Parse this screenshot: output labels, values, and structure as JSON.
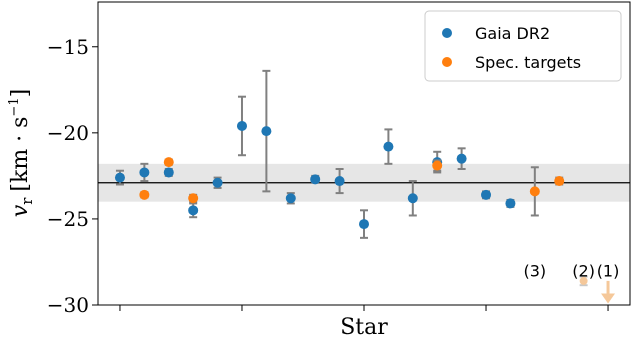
{
  "chart_data": {
    "type": "scatter",
    "title": "",
    "xlabel": "Star",
    "ylabel": "v_r [km · s⁻¹]",
    "ylabel_main": "v",
    "ylabel_sub": "r",
    "ylabel_unit": "[km · s",
    "ylabel_exp": "−1",
    "ylabel_close": "]",
    "ylim": [
      -30,
      -12.4
    ],
    "y_ticks": [
      -30,
      -25,
      -20,
      -15
    ],
    "y_tick_labels": [
      "−30",
      "−25",
      "−20",
      "−15"
    ],
    "x_tick_positions": [
      1,
      6,
      11,
      16,
      21
    ],
    "xlim": [
      0.1,
      21.9
    ],
    "grid": false,
    "legend_position": "top-right",
    "reference_line": -22.9,
    "reference_band": [
      -24.0,
      -21.8
    ],
    "series": [
      {
        "name": "Gaia DR2",
        "color": "#1f77b4",
        "points": [
          {
            "x": 1,
            "y": -22.6,
            "err": 0.4
          },
          {
            "x": 2,
            "y": -22.3,
            "err": 0.5
          },
          {
            "x": 3,
            "y": -22.3,
            "err": 0.2
          },
          {
            "x": 4,
            "y": -24.5,
            "err": 0.4
          },
          {
            "x": 5,
            "y": -22.9,
            "err": 0.3
          },
          {
            "x": 6,
            "y": -19.6,
            "err": 1.7
          },
          {
            "x": 7,
            "y": -19.9,
            "err": 3.5
          },
          {
            "x": 8,
            "y": -23.8,
            "err": 0.3
          },
          {
            "x": 9,
            "y": -22.7,
            "err": 0.2
          },
          {
            "x": 10,
            "y": -22.8,
            "err": 0.7
          },
          {
            "x": 11,
            "y": -25.3,
            "err": 0.8
          },
          {
            "x": 12,
            "y": -20.8,
            "err": 1.0
          },
          {
            "x": 13,
            "y": -23.8,
            "err": 1.0
          },
          {
            "x": 14,
            "y": -21.7,
            "err": 0.6
          },
          {
            "x": 15,
            "y": -21.5,
            "err": 0.6
          },
          {
            "x": 16,
            "y": -23.6,
            "err": 0.2
          },
          {
            "x": 17,
            "y": -24.1,
            "err": 0.2
          }
        ]
      },
      {
        "name": "Spec. targets",
        "color": "#ff7f0e",
        "points": [
          {
            "x": 2,
            "y": -23.6,
            "err": 0.15
          },
          {
            "x": 3,
            "y": -21.7,
            "err": 0.15
          },
          {
            "x": 4,
            "y": -23.8,
            "err": 0.2
          },
          {
            "x": 14,
            "y": -21.9,
            "err": 0.3
          },
          {
            "x": 18,
            "y": -23.4,
            "err": 1.4
          },
          {
            "x": 19,
            "y": -22.8,
            "err": 0.2
          }
        ]
      }
    ],
    "annotations": [
      {
        "label": "(3)",
        "x": 18,
        "y": -28.0
      },
      {
        "label": "(2)",
        "x": 20,
        "y": -28.0
      },
      {
        "label": "(1)",
        "x": 21,
        "y": -28.0
      }
    ],
    "faded_points": [
      {
        "x": 20,
        "y": -28.6,
        "err": 0.25,
        "color": "#f5c89a"
      }
    ],
    "upper_limit_arrow": {
      "x": 21,
      "y_from": -28.6,
      "y_to": -29.8,
      "color": "#f5c89a"
    }
  }
}
